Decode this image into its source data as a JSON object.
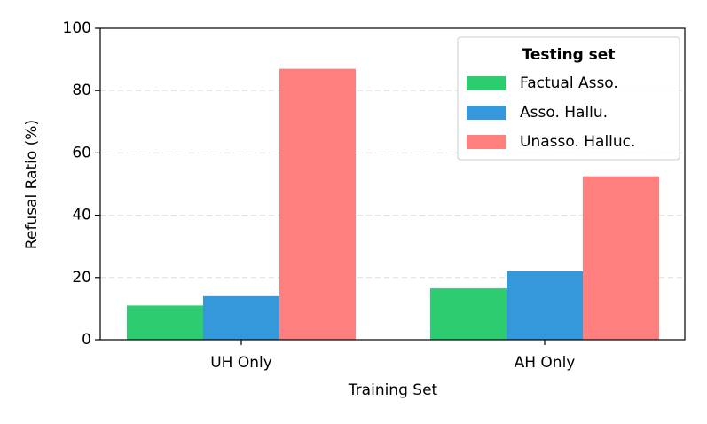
{
  "chart_data": {
    "type": "bar",
    "xlabel": "Training Set",
    "ylabel": "Refusal Ratio (%)",
    "categories": [
      "UH Only",
      "AH Only"
    ],
    "series": [
      {
        "name": "Factual Asso.",
        "color": "#2ecc71",
        "values": [
          11,
          16.5
        ]
      },
      {
        "name": "Asso. Hallu.",
        "color": "#3498db",
        "values": [
          14,
          22
        ]
      },
      {
        "name": "Unasso. Halluc.",
        "color": "#ff7f7f",
        "values": [
          87,
          52.5
        ]
      }
    ],
    "legend_title": "Testing set",
    "legend": "upper right",
    "ylim": [
      0,
      100
    ],
    "yticks": [
      0,
      20,
      40,
      60,
      80,
      100
    ],
    "grid": true
  }
}
